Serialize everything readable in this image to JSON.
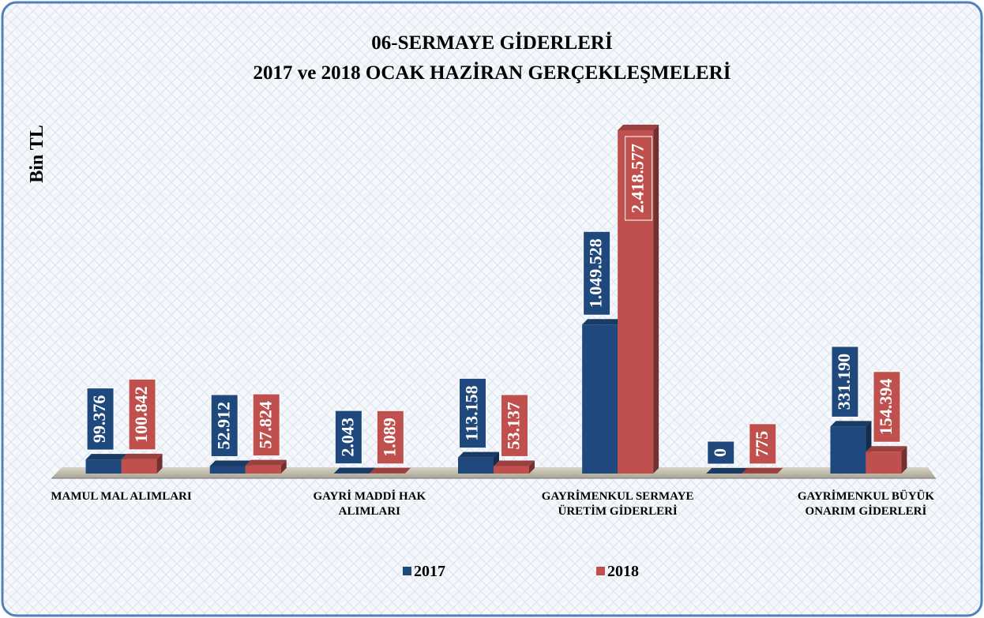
{
  "chart_data": {
    "type": "bar3d",
    "title": "06-SERMAYE GİDERLERİ",
    "subtitle": "2017 ve 2018 OCAK HAZİRAN GERÇEKLEŞMELERİ",
    "y_label": "Bin TL",
    "categories": [
      "MAMUL MAL ALIMLARI",
      null,
      "GAYRİ MADDİ HAK ALIMLARI",
      null,
      "GAYRİMENKUL SERMAYE ÜRETİM GİDERLERİ",
      null,
      "GAYRİMENKUL BÜYÜK ONARIM GİDERLERİ"
    ],
    "series": [
      {
        "name": "2017",
        "color": "#1f497d",
        "values": [
          99376,
          52912,
          2043,
          113158,
          1049528,
          0,
          331190
        ],
        "value_labels": [
          "99.376",
          "52.912",
          "2.043",
          "113.158",
          "1.049.528",
          "0",
          "331.190"
        ]
      },
      {
        "name": "2018",
        "color": "#c0504d",
        "values": [
          100842,
          57824,
          1089,
          53137,
          2418577,
          775,
          154394
        ],
        "value_labels": [
          "100.842",
          "57.824",
          "1.089",
          "53.137",
          "2.418.577",
          "775",
          "154.394"
        ]
      }
    ]
  }
}
